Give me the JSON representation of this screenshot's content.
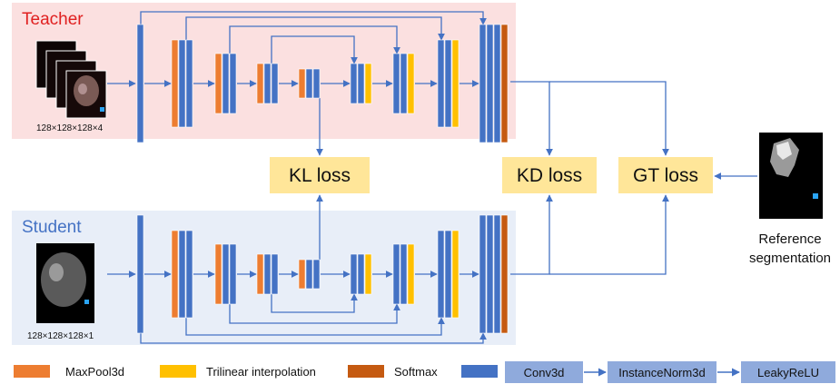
{
  "teacher": {
    "title": "Teacher",
    "input_dims": "128×128×128×4"
  },
  "student": {
    "title": "Student",
    "input_dims": "128×128×128×1"
  },
  "losses": {
    "kl": "KL loss",
    "kd": "KD loss",
    "gt": "GT loss"
  },
  "reference": {
    "line1": "Reference",
    "line2": "segmentation"
  },
  "legend": {
    "maxpool": "MaxPool3d",
    "trilinear": "Trilinear interpolation",
    "softmax": "Softmax"
  },
  "pipeline": {
    "conv": "Conv3d",
    "norm": "InstanceNorm3d",
    "act": "LeakyReLU"
  },
  "colors": {
    "conv": "#4472C4",
    "maxpool": "#ED7D31",
    "trilinear": "#FFC000",
    "softmax": "#C55A11",
    "teacher_bg": "#FBE0E0",
    "student_bg": "#E8EEF8",
    "loss_bg": "#FFE699",
    "pipeline_bg": "#8FAADC",
    "teacher_title": "#E02020",
    "student_title": "#4472C4",
    "arrow": "#4472C4"
  }
}
